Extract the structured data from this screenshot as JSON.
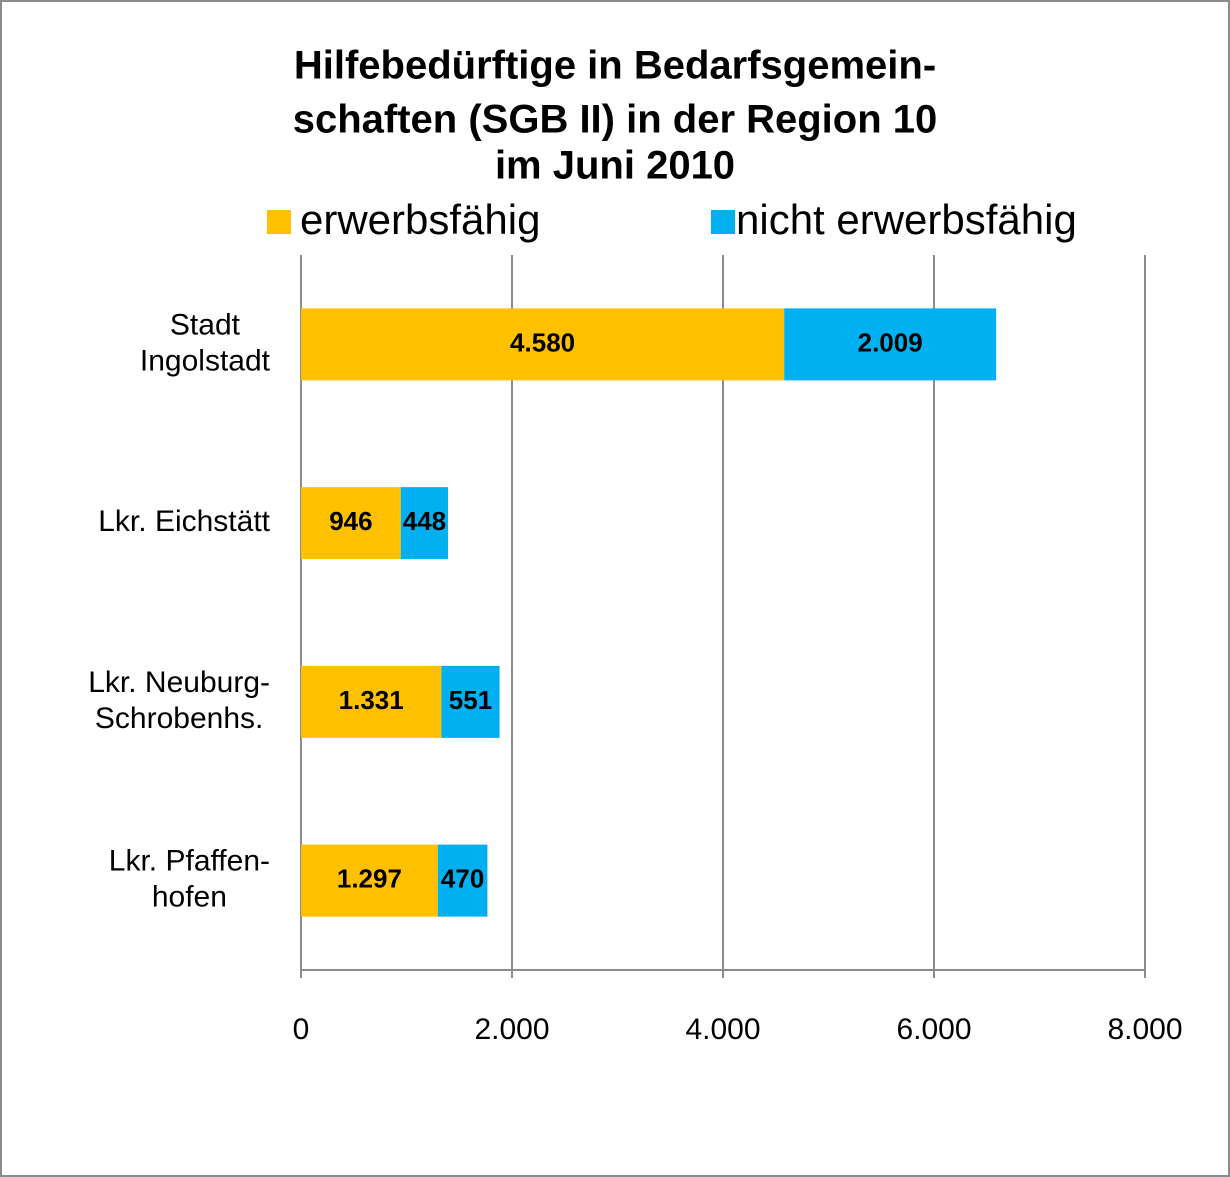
{
  "chart_data": {
    "type": "stacked-bar",
    "orientation": "horizontal",
    "title": [
      "Hilfebedürftige in Bedarfsgemein-",
      "schaften (SGB II)  in der Region 10",
      "im Juni 2010"
    ],
    "categories": [
      [
        "Stadt",
        "Ingolstadt"
      ],
      [
        "Lkr. Eichstätt"
      ],
      [
        "Lkr. Neuburg-",
        "Schrobenhs."
      ],
      [
        "Lkr. Pfaffen-",
        "hofen"
      ]
    ],
    "series": [
      {
        "name": "erwerbsfähig",
        "color": "#ffc000",
        "values": [
          4580,
          946,
          1331,
          1297
        ],
        "value_labels": [
          "4.580",
          "946",
          "1.331",
          "1.297"
        ]
      },
      {
        "name": "nicht erwerbsfähig",
        "color": "#00b0f0",
        "values": [
          2009,
          448,
          551,
          470
        ],
        "value_labels": [
          "2.009",
          "448",
          "551",
          "470"
        ]
      }
    ],
    "xlim": [
      0,
      8000
    ],
    "xticks": [
      0,
      {
        "value": 2000,
        "label": "2.000"
      },
      {
        "value": 4000,
        "label": "4.000"
      },
      {
        "value": 6000,
        "label": "6.000"
      },
      {
        "value": 8000,
        "label": "8.000"
      }
    ],
    "grid": true,
    "legend": "top"
  }
}
